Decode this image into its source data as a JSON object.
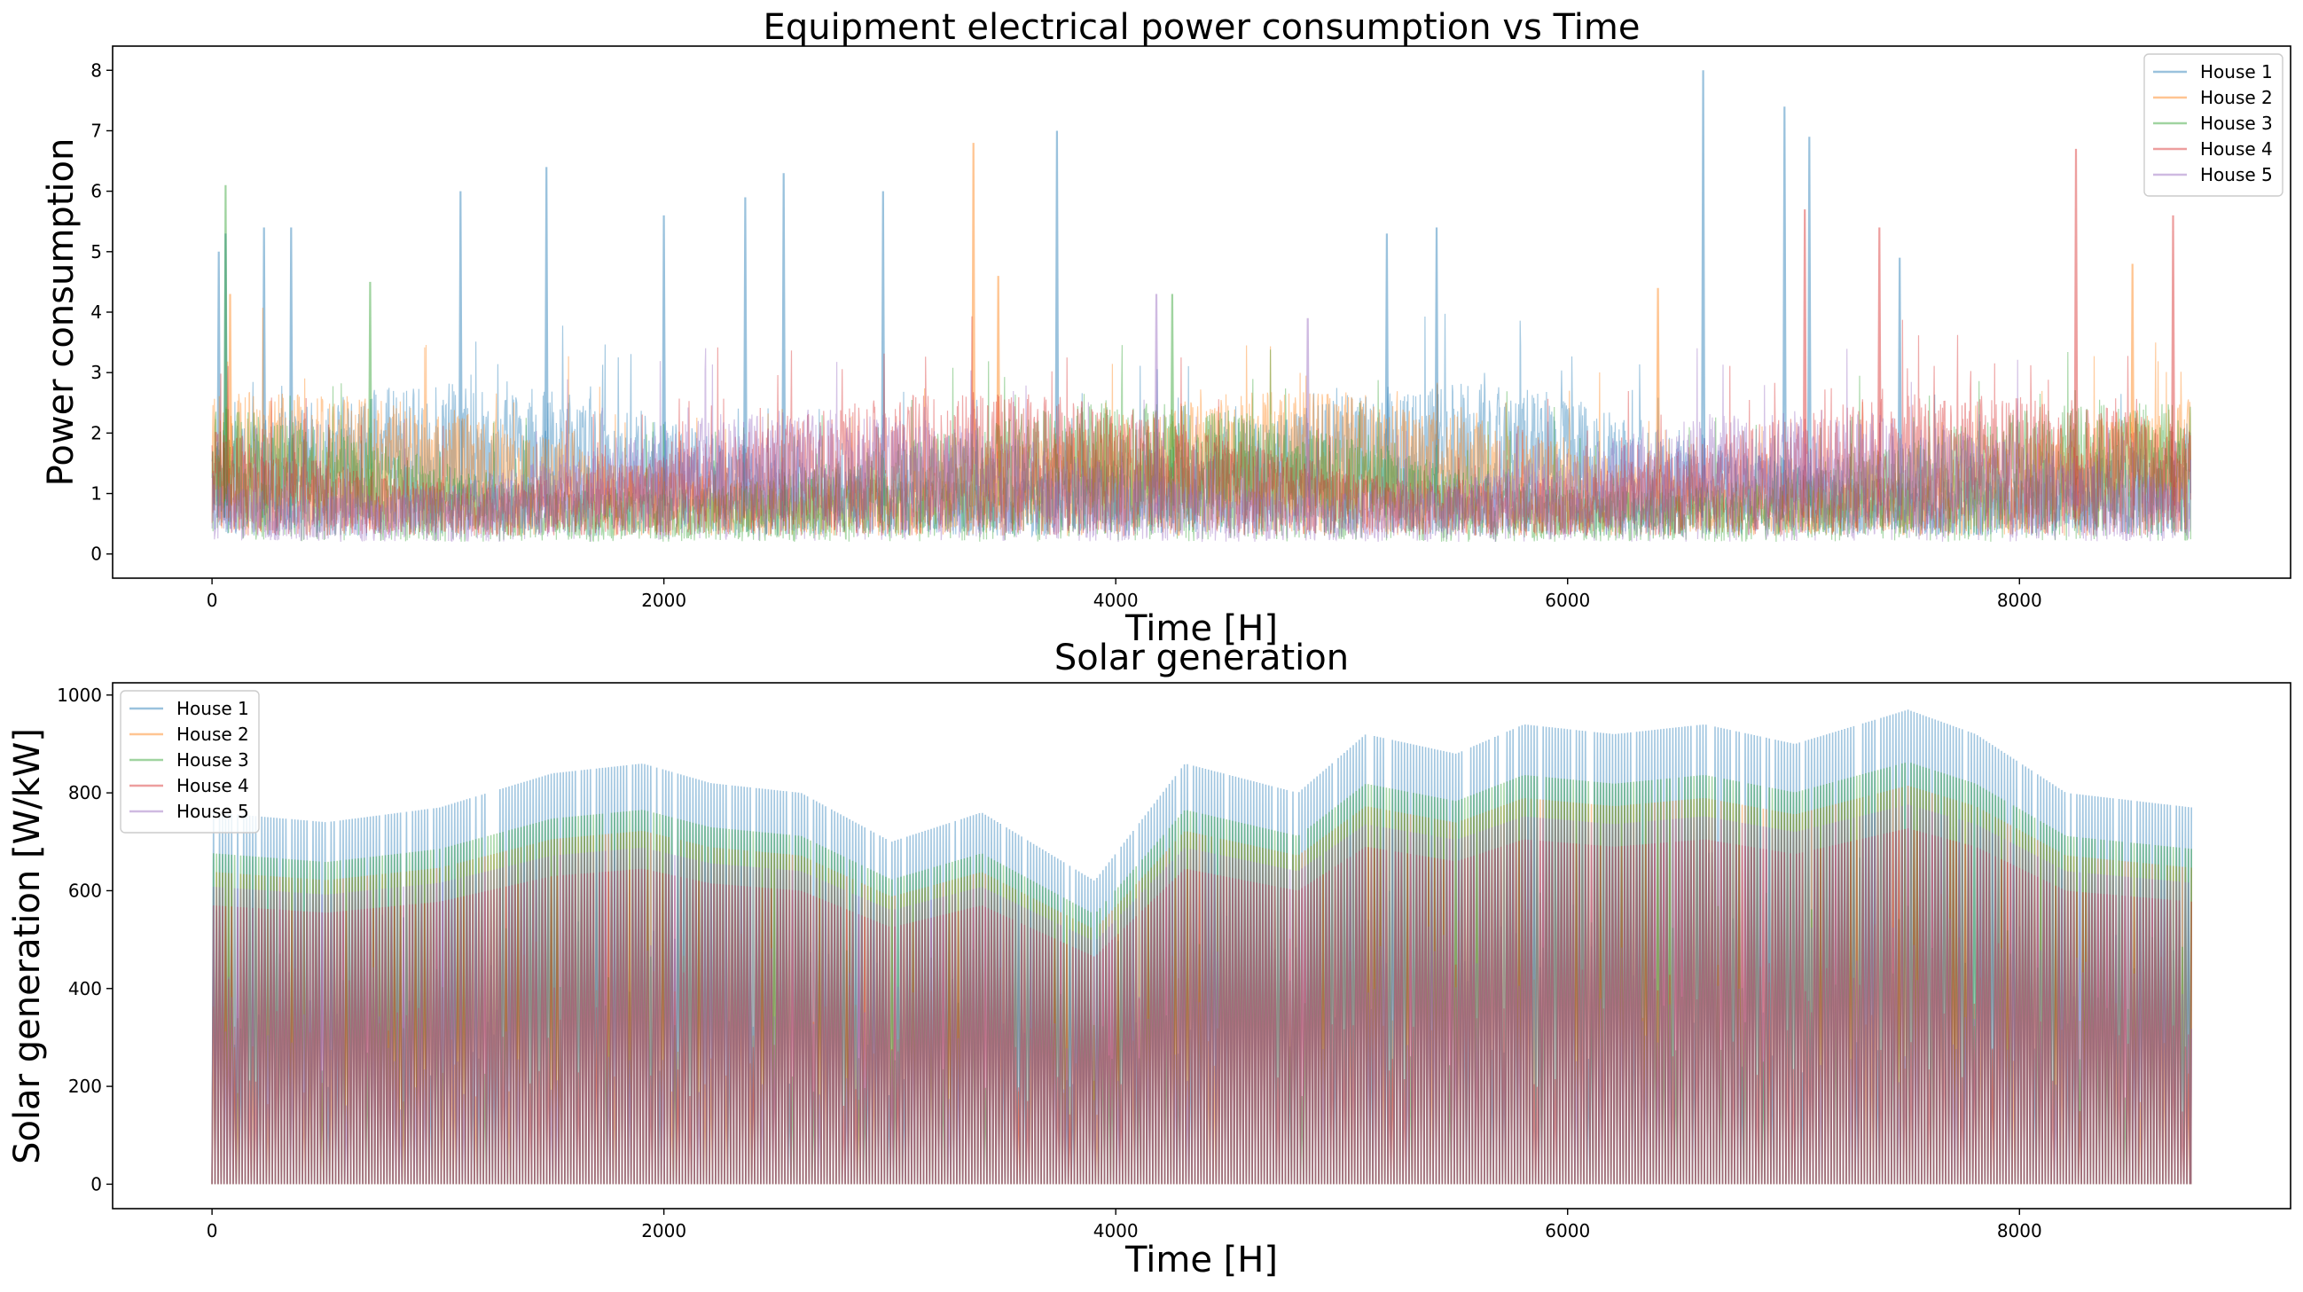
{
  "chart_data": [
    {
      "type": "line",
      "title": "Equipment electrical power consumption vs Time",
      "xlabel": "Time [H]",
      "ylabel": "Power consumption",
      "xlim": [
        -440,
        9200
      ],
      "ylim": [
        -0.4,
        8.4
      ],
      "xticks": [
        0,
        2000,
        4000,
        6000,
        8000
      ],
      "yticks": [
        0,
        1,
        2,
        3,
        4,
        5,
        6,
        7,
        8
      ],
      "legend_position": "upper right",
      "grid": false,
      "series": [
        {
          "name": "House 1",
          "color": "#1f77b4",
          "x_range": [
            0,
            8759
          ],
          "typical_range": [
            0.3,
            2.6
          ],
          "peaks": [
            [
              30,
              5.0
            ],
            [
              60,
              5.3
            ],
            [
              230,
              5.4
            ],
            [
              350,
              5.4
            ],
            [
              1100,
              6.0
            ],
            [
              1480,
              6.4
            ],
            [
              2000,
              5.6
            ],
            [
              2360,
              5.9
            ],
            [
              2530,
              6.3
            ],
            [
              2970,
              6.0
            ],
            [
              3740,
              7.0
            ],
            [
              5200,
              5.3
            ],
            [
              5420,
              5.4
            ],
            [
              6600,
              8.0
            ],
            [
              6960,
              7.4
            ],
            [
              7070,
              6.9
            ],
            [
              7470,
              4.9
            ]
          ]
        },
        {
          "name": "House 2",
          "color": "#ff7f0e",
          "x_range": [
            0,
            8759
          ],
          "typical_range": [
            0.3,
            2.5
          ],
          "peaks": [
            [
              80,
              4.3
            ],
            [
              3370,
              6.8
            ],
            [
              3480,
              4.6
            ],
            [
              6400,
              4.4
            ],
            [
              8500,
              4.8
            ]
          ]
        },
        {
          "name": "House 3",
          "color": "#2ca02c",
          "x_range": [
            0,
            8759
          ],
          "typical_range": [
            0.2,
            2.3
          ],
          "peaks": [
            [
              60,
              6.1
            ],
            [
              700,
              4.5
            ],
            [
              4250,
              4.3
            ]
          ]
        },
        {
          "name": "House 4",
          "color": "#d62728",
          "x_range": [
            0,
            8759
          ],
          "typical_range": [
            0.3,
            2.5
          ],
          "peaks": [
            [
              7050,
              5.7
            ],
            [
              7380,
              5.4
            ],
            [
              8250,
              6.7
            ],
            [
              8680,
              5.6
            ]
          ]
        },
        {
          "name": "House 5",
          "color": "#9467bd",
          "x_range": [
            0,
            8759
          ],
          "typical_range": [
            0.2,
            2.2
          ],
          "peaks": [
            [
              4180,
              4.3
            ],
            [
              4850,
              3.9
            ]
          ]
        }
      ]
    },
    {
      "type": "line",
      "title": "Solar generation",
      "xlabel": "Time [H]",
      "ylabel": "Solar generation [W/kW]",
      "xlim": [
        -440,
        9200
      ],
      "ylim": [
        -50,
        1025
      ],
      "xticks": [
        0,
        2000,
        4000,
        6000,
        8000
      ],
      "yticks": [
        0,
        200,
        400,
        600,
        800,
        1000
      ],
      "legend_position": "upper left",
      "grid": false,
      "daily_peak_envelope_house1": [
        [
          0,
          760
        ],
        [
          500,
          740
        ],
        [
          1000,
          770
        ],
        [
          1500,
          840
        ],
        [
          1900,
          860
        ],
        [
          2200,
          820
        ],
        [
          2600,
          800
        ],
        [
          3000,
          700
        ],
        [
          3400,
          760
        ],
        [
          3900,
          620
        ],
        [
          4300,
          860
        ],
        [
          4800,
          800
        ],
        [
          5100,
          920
        ],
        [
          5500,
          880
        ],
        [
          5800,
          940
        ],
        [
          6200,
          920
        ],
        [
          6600,
          940
        ],
        [
          7000,
          900
        ],
        [
          7500,
          970
        ],
        [
          7800,
          920
        ],
        [
          8200,
          800
        ],
        [
          8760,
          770
        ]
      ],
      "series": [
        {
          "name": "House 1",
          "color": "#1f77b4",
          "x_range": [
            0,
            8759
          ],
          "peak_scale": 1.0
        },
        {
          "name": "House 2",
          "color": "#ff7f0e",
          "x_range": [
            0,
            8759
          ],
          "peak_scale": 0.84
        },
        {
          "name": "House 3",
          "color": "#2ca02c",
          "x_range": [
            0,
            8759
          ],
          "peak_scale": 0.89
        },
        {
          "name": "House 4",
          "color": "#d62728",
          "x_range": [
            0,
            8759
          ],
          "peak_scale": 0.75
        },
        {
          "name": "House 5",
          "color": "#9467bd",
          "x_range": [
            0,
            8759
          ],
          "peak_scale": 0.8
        }
      ]
    }
  ]
}
